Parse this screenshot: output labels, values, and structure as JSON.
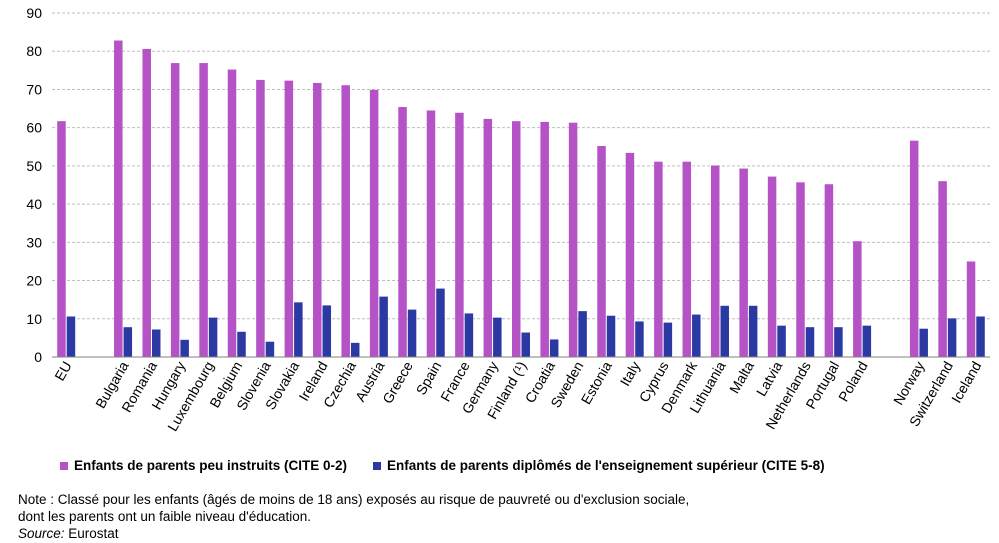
{
  "chart_data": {
    "type": "bar",
    "categories": [
      "EU",
      "",
      "Bulgaria",
      "Romania",
      "Hungary",
      "Luxembourg",
      "Belgium",
      "Slovenia",
      "Slovakia",
      "Ireland",
      "Czechia",
      "Austria",
      "Greece",
      "Spain",
      "France",
      "Germany",
      "Finland (¹)",
      "Croatia",
      "Sweden",
      "Estonia",
      "Italy",
      "Cyprus",
      "Denmark",
      "Lithuania",
      "Malta",
      "Latvia",
      "Netherlands",
      "Portugal",
      "Poland",
      "",
      "Norway",
      "Switzerland",
      "Iceland"
    ],
    "series": [
      {
        "name": "Enfants de parents peu instruits (CITE 0-2)",
        "color": "#b552c6",
        "values": [
          61.7,
          null,
          82.8,
          80.6,
          76.9,
          76.9,
          75.2,
          72.5,
          72.3,
          71.7,
          71.1,
          69.9,
          65.4,
          64.5,
          63.9,
          62.3,
          61.7,
          61.5,
          61.3,
          55.2,
          53.4,
          51.1,
          51.1,
          50.1,
          49.3,
          47.2,
          45.7,
          45.2,
          30.3,
          null,
          56.6,
          46.0,
          25.0
        ]
      },
      {
        "name": "Enfants de parents diplômés de l'enseignement supérieur (CITE 5-8)",
        "color": "#2b3aa3",
        "values": [
          10.6,
          null,
          7.8,
          7.2,
          4.5,
          10.3,
          6.6,
          4.0,
          14.3,
          13.5,
          3.7,
          15.8,
          12.4,
          17.9,
          11.4,
          10.3,
          6.4,
          4.6,
          12.0,
          10.8,
          9.3,
          9.0,
          11.1,
          13.4,
          13.4,
          8.2,
          7.8,
          7.8,
          8.2,
          null,
          7.4,
          10.1,
          10.6
        ]
      }
    ],
    "yticks": [
      "0",
      "10",
      "20",
      "30",
      "40",
      "50",
      "60",
      "70",
      "80",
      "90"
    ],
    "ylim": [
      0,
      90
    ],
    "grid": true,
    "grid_style": "dashed",
    "legend_position": "bottom"
  },
  "notes": {
    "line1": "Note : Classé pour les enfants (âgés de moins de 18 ans) exposés au risque de pauvreté ou d'exclusion sociale,",
    "line2": "dont les parents ont un faible niveau d'éducation.",
    "source_label": "Source:",
    "source_value": " Eurostat"
  }
}
